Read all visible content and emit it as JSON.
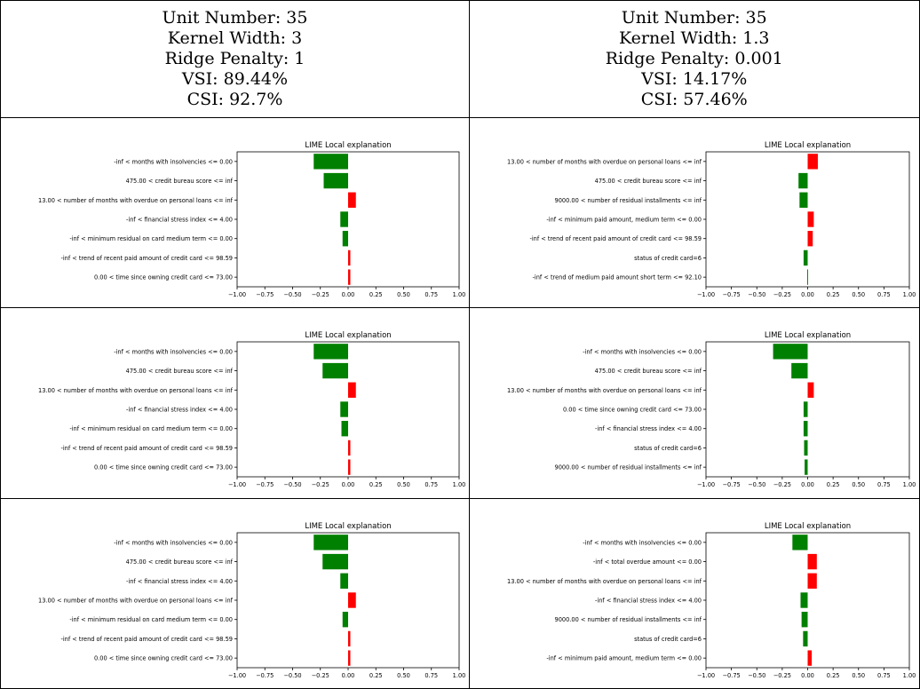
{
  "headers": [
    {
      "unit": "Unit Number: 35",
      "kernel": "Kernel Width: 3",
      "ridge": "Ridge Penalty: 1",
      "vsi": "VSI: 89.44%",
      "csi": "CSI: 92.7%"
    },
    {
      "unit": "Unit Number: 35",
      "kernel": "Kernel Width: 1.3",
      "ridge": "Ridge Penalty: 0.001",
      "vsi": "VSI: 14.17%",
      "csi": "CSI: 57.46%"
    }
  ],
  "colors": {
    "positive": "#ff0000",
    "negative": "#008000"
  },
  "chart_data": [
    {
      "type": "bar",
      "orientation": "horizontal",
      "title": "LIME Local explanation",
      "xlim": [
        -1,
        1
      ],
      "xticks": [
        -1.0,
        -0.75,
        -0.5,
        -0.25,
        0.0,
        0.25,
        0.5,
        0.75,
        1.0
      ],
      "xtick_labels": [
        "−1.00",
        "−0.75",
        "−0.50",
        "−0.25",
        "0.00",
        "0.25",
        "0.50",
        "0.75",
        "1.00"
      ],
      "categories": [
        "-inf < months with insolvencies <= 0.00",
        "475.00 < credit bureau score <= inf",
        "13.00 < number of months with overdue on personal loans <= inf",
        "-inf < financial stress index <= 4.00",
        "-inf < minimum residual on card medium term <= 0.00",
        "-inf < trend of recent paid amount of credit card <= 98.59",
        "0.00 < time since owning credit card <= 73.00"
      ],
      "values": [
        -0.31,
        -0.22,
        0.07,
        -0.07,
        -0.05,
        0.02,
        0.02
      ]
    },
    {
      "type": "bar",
      "orientation": "horizontal",
      "title": "LIME Local explanation",
      "xlim": [
        -1,
        1
      ],
      "xticks": [
        -1.0,
        -0.75,
        -0.5,
        -0.25,
        0.0,
        0.25,
        0.5,
        0.75,
        1.0
      ],
      "xtick_labels": [
        "−1.00",
        "−0.75",
        "−0.50",
        "−0.25",
        "0.00",
        "0.25",
        "0.50",
        "0.75",
        "1.00"
      ],
      "categories": [
        "13.00 < number of months with overdue on personal loans <= inf",
        "475.00 < credit bureau score <= inf",
        "9000.00 < number of residual installments <= inf",
        "-inf < minimum paid amount, medium term <= 0.00",
        "-inf < trend of recent paid amount of credit card <= 98.59",
        "status of credit card=6",
        "-inf < trend of medium paid amount short term <= 92.10"
      ],
      "values": [
        0.1,
        -0.09,
        -0.08,
        0.06,
        0.05,
        -0.04,
        -0.005
      ]
    },
    {
      "type": "bar",
      "orientation": "horizontal",
      "title": "LIME Local explanation",
      "xlim": [
        -1,
        1
      ],
      "xticks": [
        -1.0,
        -0.75,
        -0.5,
        -0.25,
        0.0,
        0.25,
        0.5,
        0.75,
        1.0
      ],
      "xtick_labels": [
        "−1.00",
        "−0.75",
        "−0.50",
        "−0.25",
        "0.00",
        "0.25",
        "0.50",
        "0.75",
        "1.00"
      ],
      "categories": [
        "-inf < months with insolvencies <= 0.00",
        "475.00 < credit bureau score <= inf",
        "13.00 < number of months with overdue on personal loans <= inf",
        "-inf < financial stress index <= 4.00",
        "-inf < minimum residual on card medium term <= 0.00",
        "-inf < trend of recent paid amount of credit card <= 98.59",
        "0.00 < time since owning credit card <= 73.00"
      ],
      "values": [
        -0.31,
        -0.23,
        0.07,
        -0.07,
        -0.06,
        0.02,
        0.02
      ]
    },
    {
      "type": "bar",
      "orientation": "horizontal",
      "title": "LIME Local explanation",
      "xlim": [
        -1,
        1
      ],
      "xticks": [
        -1.0,
        -0.75,
        -0.5,
        -0.25,
        0.0,
        0.25,
        0.5,
        0.75,
        1.0
      ],
      "xtick_labels": [
        "−1.00",
        "−0.75",
        "−0.50",
        "−0.25",
        "0.00",
        "0.25",
        "0.50",
        "0.75",
        "1.00"
      ],
      "categories": [
        "-inf < months with insolvencies <= 0.00",
        "475.00 < credit bureau score <= inf",
        "13.00 < number of months with overdue on personal loans <= inf",
        "0.00 < time since owning credit card <= 73.00",
        "-inf < financial stress index <= 4.00",
        "status of credit card=6",
        "9000.00 < number of residual installments <= inf"
      ],
      "values": [
        -0.34,
        -0.16,
        0.06,
        -0.04,
        -0.04,
        -0.035,
        -0.03
      ]
    },
    {
      "type": "bar",
      "orientation": "horizontal",
      "title": "LIME Local explanation",
      "xlim": [
        -1,
        1
      ],
      "xticks": [
        -1.0,
        -0.75,
        -0.5,
        -0.25,
        0.0,
        0.25,
        0.5,
        0.75,
        1.0
      ],
      "xtick_labels": [
        "−1.00",
        "−0.75",
        "−0.50",
        "−0.25",
        "0.00",
        "0.25",
        "0.50",
        "0.75",
        "1.00"
      ],
      "categories": [
        "-inf < months with insolvencies <= 0.00",
        "475.00 < credit bureau score <= inf",
        "-inf < financial stress index <= 4.00",
        "13.00 < number of months with overdue on personal loans <= inf",
        "-inf < minimum residual on card medium term <= 0.00",
        "-inf < trend of recent paid amount of credit card <= 98.59",
        "0.00 < time since owning credit card <= 73.00"
      ],
      "values": [
        -0.31,
        -0.23,
        -0.07,
        0.07,
        -0.05,
        0.02,
        0.02
      ]
    },
    {
      "type": "bar",
      "orientation": "horizontal",
      "title": "LIME Local explanation",
      "xlim": [
        -1,
        1
      ],
      "xticks": [
        -1.0,
        -0.75,
        -0.5,
        -0.25,
        0.0,
        0.25,
        0.5,
        0.75,
        1.0
      ],
      "xtick_labels": [
        "−1.00",
        "−0.75",
        "−0.50",
        "−0.25",
        "0.00",
        "0.25",
        "0.50",
        "0.75",
        "1.00"
      ],
      "categories": [
        "-inf < months with insolvencies <= 0.00",
        "-inf < total overdue amount <= 0.00",
        "13.00 < number of months with overdue on personal loans <= inf",
        "-inf < financial stress index <= 4.00",
        "9000.00 < number of residual installments <= inf",
        "status of credit card=6",
        "-inf < minimum paid amount, medium term <= 0.00"
      ],
      "values": [
        -0.15,
        0.09,
        0.09,
        -0.07,
        -0.06,
        -0.045,
        0.04
      ]
    }
  ]
}
